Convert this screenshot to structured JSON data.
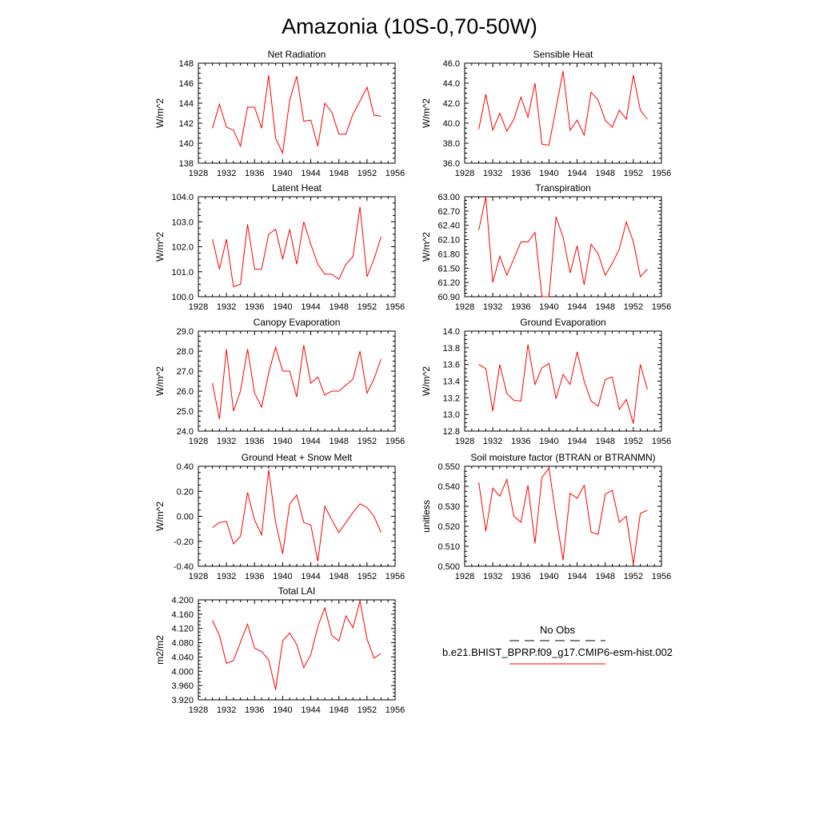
{
  "title": "Amazonia (10S-0,70-50W)",
  "colors": {
    "model_line": "#ff0000",
    "axis": "#000000",
    "obs_line": "#000000"
  },
  "legend": {
    "obs_label": "No Obs",
    "model_label": "b.e21.BHIST_BPRP.f09_g17.CMIP6-esm-hist.002"
  },
  "chart_data": [
    {
      "type": "line",
      "title": "Net Radiation",
      "ylabel": "W/m^2",
      "xlim": [
        1928,
        1956
      ],
      "ylim": [
        138,
        148
      ],
      "xticks": [
        1928,
        1932,
        1936,
        1940,
        1944,
        1948,
        1952,
        1956
      ],
      "yticks": [
        138,
        140,
        142,
        144,
        146,
        148
      ],
      "ytick_decimals": 0,
      "series": [
        {
          "x": [
            1930,
            1931,
            1932,
            1933,
            1934,
            1935,
            1936,
            1937,
            1938,
            1939,
            1940,
            1941,
            1942,
            1943,
            1944,
            1945,
            1946,
            1947,
            1948,
            1949,
            1950,
            1951,
            1952,
            1953,
            1954
          ],
          "values": [
            141.5,
            143.9,
            141.6,
            141.3,
            139.7,
            143.6,
            143.6,
            141.5,
            146.8,
            140.5,
            139.0,
            144.3,
            146.7,
            142.2,
            142.3,
            139.7,
            144.0,
            143.1,
            140.9,
            140.9,
            142.9,
            144.2,
            145.6,
            142.8,
            142.7
          ]
        }
      ]
    },
    {
      "type": "line",
      "title": "Sensible Heat",
      "ylabel": "W/m^2",
      "xlim": [
        1928,
        1956
      ],
      "ylim": [
        36,
        46
      ],
      "xticks": [
        1928,
        1932,
        1936,
        1940,
        1944,
        1948,
        1952,
        1956
      ],
      "yticks": [
        36,
        38,
        40,
        42,
        44,
        46
      ],
      "ytick_decimals": 1,
      "series": [
        {
          "x": [
            1930,
            1931,
            1932,
            1933,
            1934,
            1935,
            1936,
            1937,
            1938,
            1939,
            1940,
            1941,
            1942,
            1943,
            1944,
            1945,
            1946,
            1947,
            1948,
            1949,
            1950,
            1951,
            1952,
            1953,
            1954
          ],
          "values": [
            39.4,
            42.9,
            39.3,
            41.0,
            39.2,
            40.4,
            42.6,
            40.6,
            44.0,
            37.9,
            37.8,
            41.5,
            45.2,
            39.3,
            40.3,
            38.8,
            43.1,
            42.3,
            40.3,
            39.6,
            41.3,
            40.4,
            44.8,
            41.3,
            40.4
          ]
        }
      ]
    },
    {
      "type": "line",
      "title": "Latent Heat",
      "ylabel": "W/m^2",
      "xlim": [
        1928,
        1956
      ],
      "ylim": [
        100,
        104
      ],
      "xticks": [
        1928,
        1932,
        1936,
        1940,
        1944,
        1948,
        1952,
        1956
      ],
      "yticks": [
        100,
        101,
        102,
        103,
        104
      ],
      "ytick_decimals": 1,
      "series": [
        {
          "x": [
            1930,
            1931,
            1932,
            1933,
            1934,
            1935,
            1936,
            1937,
            1938,
            1939,
            1940,
            1941,
            1942,
            1943,
            1944,
            1945,
            1946,
            1947,
            1948,
            1949,
            1950,
            1951,
            1952,
            1953,
            1954
          ],
          "values": [
            102.3,
            101.1,
            102.3,
            100.4,
            100.5,
            102.9,
            101.1,
            101.1,
            102.5,
            102.7,
            101.5,
            102.7,
            101.3,
            103.0,
            102.1,
            101.3,
            100.9,
            100.9,
            100.7,
            101.3,
            101.6,
            103.6,
            100.8,
            101.5,
            102.4
          ]
        }
      ]
    },
    {
      "type": "line",
      "title": "Transpiration",
      "ylabel": "W/m^2",
      "xlim": [
        1928,
        1956
      ],
      "ylim": [
        60.9,
        63.0
      ],
      "xticks": [
        1928,
        1932,
        1936,
        1940,
        1944,
        1948,
        1952,
        1956
      ],
      "yticks": [
        60.9,
        61.2,
        61.5,
        61.8,
        62.1,
        62.4,
        62.7,
        63.0
      ],
      "ytick_decimals": 2,
      "series": [
        {
          "x": [
            1930,
            1931,
            1932,
            1933,
            1934,
            1935,
            1936,
            1937,
            1938,
            1939,
            1940,
            1941,
            1942,
            1943,
            1944,
            1945,
            1946,
            1947,
            1948,
            1949,
            1950,
            1951,
            1952,
            1953,
            1954
          ],
          "values": [
            62.3,
            63.0,
            61.2,
            61.75,
            61.35,
            61.7,
            62.05,
            62.05,
            62.25,
            60.9,
            60.9,
            62.58,
            62.15,
            61.4,
            61.97,
            61.15,
            62.0,
            61.8,
            61.35,
            61.6,
            61.9,
            62.47,
            62.05,
            61.32,
            61.48
          ]
        }
      ]
    },
    {
      "type": "line",
      "title": "Canopy Evaporation",
      "ylabel": "W/m^2",
      "xlim": [
        1928,
        1956
      ],
      "ylim": [
        24,
        29
      ],
      "xticks": [
        1928,
        1932,
        1936,
        1940,
        1944,
        1948,
        1952,
        1956
      ],
      "yticks": [
        24,
        25,
        26,
        27,
        28,
        29
      ],
      "ytick_decimals": 1,
      "series": [
        {
          "x": [
            1930,
            1931,
            1932,
            1933,
            1934,
            1935,
            1936,
            1937,
            1938,
            1939,
            1940,
            1941,
            1942,
            1943,
            1944,
            1945,
            1946,
            1947,
            1948,
            1949,
            1950,
            1951,
            1952,
            1953,
            1954
          ],
          "values": [
            26.4,
            24.6,
            28.1,
            25.0,
            26.0,
            28.1,
            25.9,
            25.2,
            26.9,
            28.2,
            27.0,
            27.0,
            25.7,
            28.3,
            26.4,
            26.7,
            25.8,
            26.0,
            26.0,
            26.3,
            26.6,
            28.0,
            25.9,
            26.6,
            27.6
          ]
        }
      ]
    },
    {
      "type": "line",
      "title": "Ground Evaporation",
      "ylabel": "W/m^2",
      "xlim": [
        1928,
        1956
      ],
      "ylim": [
        12.8,
        14.0
      ],
      "xticks": [
        1928,
        1932,
        1936,
        1940,
        1944,
        1948,
        1952,
        1956
      ],
      "yticks": [
        12.8,
        13.0,
        13.2,
        13.4,
        13.6,
        13.8,
        14.0
      ],
      "ytick_decimals": 1,
      "series": [
        {
          "x": [
            1930,
            1931,
            1932,
            1933,
            1934,
            1935,
            1936,
            1937,
            1938,
            1939,
            1940,
            1941,
            1942,
            1943,
            1944,
            1945,
            1946,
            1947,
            1948,
            1949,
            1950,
            1951,
            1952,
            1953,
            1954
          ],
          "values": [
            13.6,
            13.55,
            13.04,
            13.6,
            13.25,
            13.17,
            13.16,
            13.84,
            13.36,
            13.56,
            13.61,
            13.19,
            13.48,
            13.36,
            13.75,
            13.4,
            13.16,
            13.1,
            13.42,
            13.45,
            13.06,
            13.18,
            12.89,
            13.6,
            13.3
          ]
        }
      ]
    },
    {
      "type": "line",
      "title": "Ground Heat + Snow Melt",
      "ylabel": "W/m^2",
      "xlim": [
        1928,
        1956
      ],
      "ylim": [
        -0.4,
        0.4
      ],
      "xticks": [
        1928,
        1932,
        1936,
        1940,
        1944,
        1948,
        1952,
        1956
      ],
      "yticks": [
        -0.4,
        -0.2,
        0.0,
        0.2,
        0.4
      ],
      "ytick_decimals": 2,
      "series": [
        {
          "x": [
            1930,
            1931,
            1932,
            1933,
            1934,
            1935,
            1936,
            1937,
            1938,
            1939,
            1940,
            1941,
            1942,
            1943,
            1944,
            1945,
            1946,
            1947,
            1948,
            1949,
            1950,
            1951,
            1952,
            1953,
            1954
          ],
          "values": [
            -0.09,
            -0.05,
            -0.04,
            -0.22,
            -0.16,
            0.19,
            -0.03,
            -0.15,
            0.37,
            -0.05,
            -0.3,
            0.1,
            0.17,
            -0.05,
            -0.07,
            -0.36,
            0.08,
            -0.03,
            -0.13,
            -0.05,
            0.03,
            0.1,
            0.07,
            0.0,
            -0.13
          ]
        }
      ]
    },
    {
      "type": "line",
      "title": "Soil moisture factor (BTRAN or BTRANMN)",
      "ylabel": "unitless",
      "xlim": [
        1928,
        1956
      ],
      "ylim": [
        0.5,
        0.55
      ],
      "xticks": [
        1928,
        1932,
        1936,
        1940,
        1944,
        1948,
        1952,
        1956
      ],
      "yticks": [
        0.5,
        0.51,
        0.52,
        0.53,
        0.54,
        0.55
      ],
      "ytick_decimals": 3,
      "series": [
        {
          "x": [
            1930,
            1931,
            1932,
            1933,
            1934,
            1935,
            1936,
            1937,
            1938,
            1939,
            1940,
            1941,
            1942,
            1943,
            1944,
            1945,
            1946,
            1947,
            1948,
            1949,
            1950,
            1951,
            1952,
            1953,
            1954
          ],
          "values": [
            0.542,
            0.5175,
            0.539,
            0.535,
            0.5435,
            0.525,
            0.522,
            0.5405,
            0.5115,
            0.5445,
            0.549,
            0.525,
            0.503,
            0.5365,
            0.534,
            0.5405,
            0.517,
            0.516,
            0.536,
            0.538,
            0.522,
            0.525,
            0.501,
            0.5265,
            0.528
          ]
        }
      ]
    },
    {
      "type": "line",
      "title": "Total LAI",
      "ylabel": "m2/m2",
      "xlim": [
        1928,
        1956
      ],
      "ylim": [
        3.92,
        4.2
      ],
      "xticks": [
        1928,
        1932,
        1936,
        1940,
        1944,
        1948,
        1952,
        1956
      ],
      "yticks": [
        3.92,
        3.96,
        4.0,
        4.04,
        4.08,
        4.12,
        4.16,
        4.2
      ],
      "ytick_decimals": 3,
      "series": [
        {
          "x": [
            1930,
            1931,
            1932,
            1933,
            1934,
            1935,
            1936,
            1937,
            1938,
            1939,
            1940,
            1941,
            1942,
            1943,
            1944,
            1945,
            1946,
            1947,
            1948,
            1949,
            1950,
            1951,
            1952,
            1953,
            1954
          ],
          "values": [
            4.142,
            4.1,
            4.022,
            4.03,
            4.082,
            4.132,
            4.065,
            4.055,
            4.032,
            3.948,
            4.085,
            4.107,
            4.075,
            4.01,
            4.047,
            4.125,
            4.178,
            4.1,
            4.085,
            4.155,
            4.122,
            4.197,
            4.09,
            4.037,
            4.05
          ]
        }
      ]
    }
  ]
}
